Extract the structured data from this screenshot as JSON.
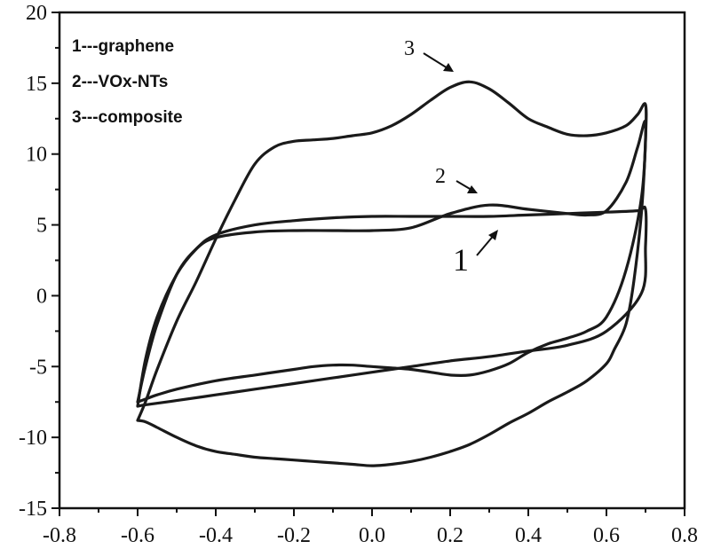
{
  "chart_data": {
    "type": "line",
    "title": "",
    "xlabel": "",
    "ylabel": "",
    "xlim": [
      -0.8,
      0.8
    ],
    "ylim": [
      -15,
      20
    ],
    "xticks": [
      -0.8,
      -0.6,
      -0.4,
      -0.2,
      0.0,
      0.2,
      0.4,
      0.6,
      0.8
    ],
    "xtick_labels": [
      "-0.8",
      "-0.6",
      "-0.4",
      "-0.2",
      "0.0",
      "0.2",
      "0.4",
      "0.6",
      "0.8"
    ],
    "yticks": [
      -15,
      -10,
      -5,
      0,
      5,
      10,
      15,
      20
    ],
    "ytick_labels": [
      "-15",
      "-10",
      "-5",
      "0",
      "5",
      "10",
      "15",
      "20"
    ],
    "grid": false,
    "legend_position": "top-left",
    "legend": [
      "1---graphene",
      "2---VOx-NTs",
      "3---composite"
    ],
    "annotations": [
      {
        "label": "1",
        "target": [
          0.5,
          5.2
        ]
      },
      {
        "label": "2",
        "target": [
          0.3,
          7.2
        ]
      },
      {
        "label": "3",
        "target": [
          0.26,
          15.5
        ]
      }
    ],
    "series": [
      {
        "name": "1---graphene",
        "x": [
          -0.6,
          -0.58,
          -0.55,
          -0.5,
          -0.45,
          -0.4,
          -0.3,
          -0.2,
          -0.1,
          0.0,
          0.1,
          0.2,
          0.3,
          0.4,
          0.5,
          0.6,
          0.68,
          0.7,
          0.7,
          0.69,
          0.6,
          0.5,
          0.4,
          0.3,
          0.2,
          0.1,
          0.0,
          -0.1,
          -0.2,
          -0.3,
          -0.4,
          -0.5,
          -0.58,
          -0.6
        ],
        "y": [
          -7.8,
          -4.5,
          -1.5,
          1.5,
          3.3,
          4.3,
          5.0,
          5.3,
          5.5,
          5.6,
          5.6,
          5.6,
          5.6,
          5.7,
          5.8,
          5.9,
          6.0,
          6.1,
          3.5,
          0.2,
          -2.5,
          -3.5,
          -3.9,
          -4.3,
          -4.6,
          -5.0,
          -5.4,
          -5.8,
          -6.2,
          -6.6,
          -7.0,
          -7.4,
          -7.7,
          -7.8
        ]
      },
      {
        "name": "2---VOx-NTs",
        "x": [
          -0.6,
          -0.58,
          -0.55,
          -0.5,
          -0.45,
          -0.4,
          -0.3,
          -0.2,
          -0.1,
          0.0,
          0.1,
          0.2,
          0.3,
          0.4,
          0.5,
          0.55,
          0.6,
          0.65,
          0.68,
          0.7,
          0.69,
          0.65,
          0.6,
          0.55,
          0.5,
          0.45,
          0.4,
          0.35,
          0.3,
          0.25,
          0.2,
          0.15,
          0.1,
          0.05,
          0.0,
          -0.05,
          -0.1,
          -0.15,
          -0.2,
          -0.3,
          -0.4,
          -0.5,
          -0.55,
          -0.58,
          -0.6
        ],
        "y": [
          -7.5,
          -5.0,
          -2.0,
          1.5,
          3.3,
          4.1,
          4.5,
          4.6,
          4.6,
          4.6,
          4.8,
          5.8,
          6.4,
          6.1,
          5.8,
          5.7,
          6.0,
          8.0,
          10.5,
          12.2,
          7.0,
          1.8,
          -1.5,
          -2.5,
          -3.0,
          -3.4,
          -4.0,
          -4.8,
          -5.3,
          -5.6,
          -5.6,
          -5.4,
          -5.2,
          -5.1,
          -5.0,
          -4.9,
          -4.9,
          -5.0,
          -5.2,
          -5.6,
          -6.0,
          -6.6,
          -7.0,
          -7.3,
          -7.5
        ]
      },
      {
        "name": "3---composite",
        "x": [
          -0.6,
          -0.58,
          -0.55,
          -0.5,
          -0.45,
          -0.4,
          -0.35,
          -0.3,
          -0.25,
          -0.2,
          -0.15,
          -0.1,
          -0.05,
          0.0,
          0.05,
          0.1,
          0.15,
          0.2,
          0.25,
          0.3,
          0.35,
          0.4,
          0.45,
          0.5,
          0.55,
          0.6,
          0.65,
          0.68,
          0.7,
          0.7,
          0.69,
          0.67,
          0.65,
          0.62,
          0.6,
          0.55,
          0.5,
          0.45,
          0.4,
          0.35,
          0.3,
          0.25,
          0.2,
          0.15,
          0.1,
          0.05,
          0.0,
          -0.05,
          -0.1,
          -0.15,
          -0.2,
          -0.25,
          -0.3,
          -0.35,
          -0.4,
          -0.45,
          -0.5,
          -0.55,
          -0.58,
          -0.6
        ],
        "y": [
          -8.8,
          -7.5,
          -5.2,
          -1.8,
          1.0,
          4.0,
          6.8,
          9.3,
          10.5,
          10.9,
          11.0,
          11.1,
          11.3,
          11.5,
          12.0,
          12.8,
          13.8,
          14.7,
          15.1,
          14.6,
          13.6,
          12.5,
          11.9,
          11.4,
          11.3,
          11.5,
          12.0,
          12.8,
          13.5,
          11.0,
          6.0,
          1.0,
          -2.0,
          -3.8,
          -4.8,
          -6.0,
          -6.8,
          -7.5,
          -8.3,
          -9.0,
          -9.8,
          -10.5,
          -11.0,
          -11.4,
          -11.7,
          -11.9,
          -12.0,
          -11.9,
          -11.8,
          -11.7,
          -11.6,
          -11.5,
          -11.4,
          -11.2,
          -11.0,
          -10.6,
          -10.0,
          -9.3,
          -8.9,
          -8.8
        ]
      }
    ]
  }
}
